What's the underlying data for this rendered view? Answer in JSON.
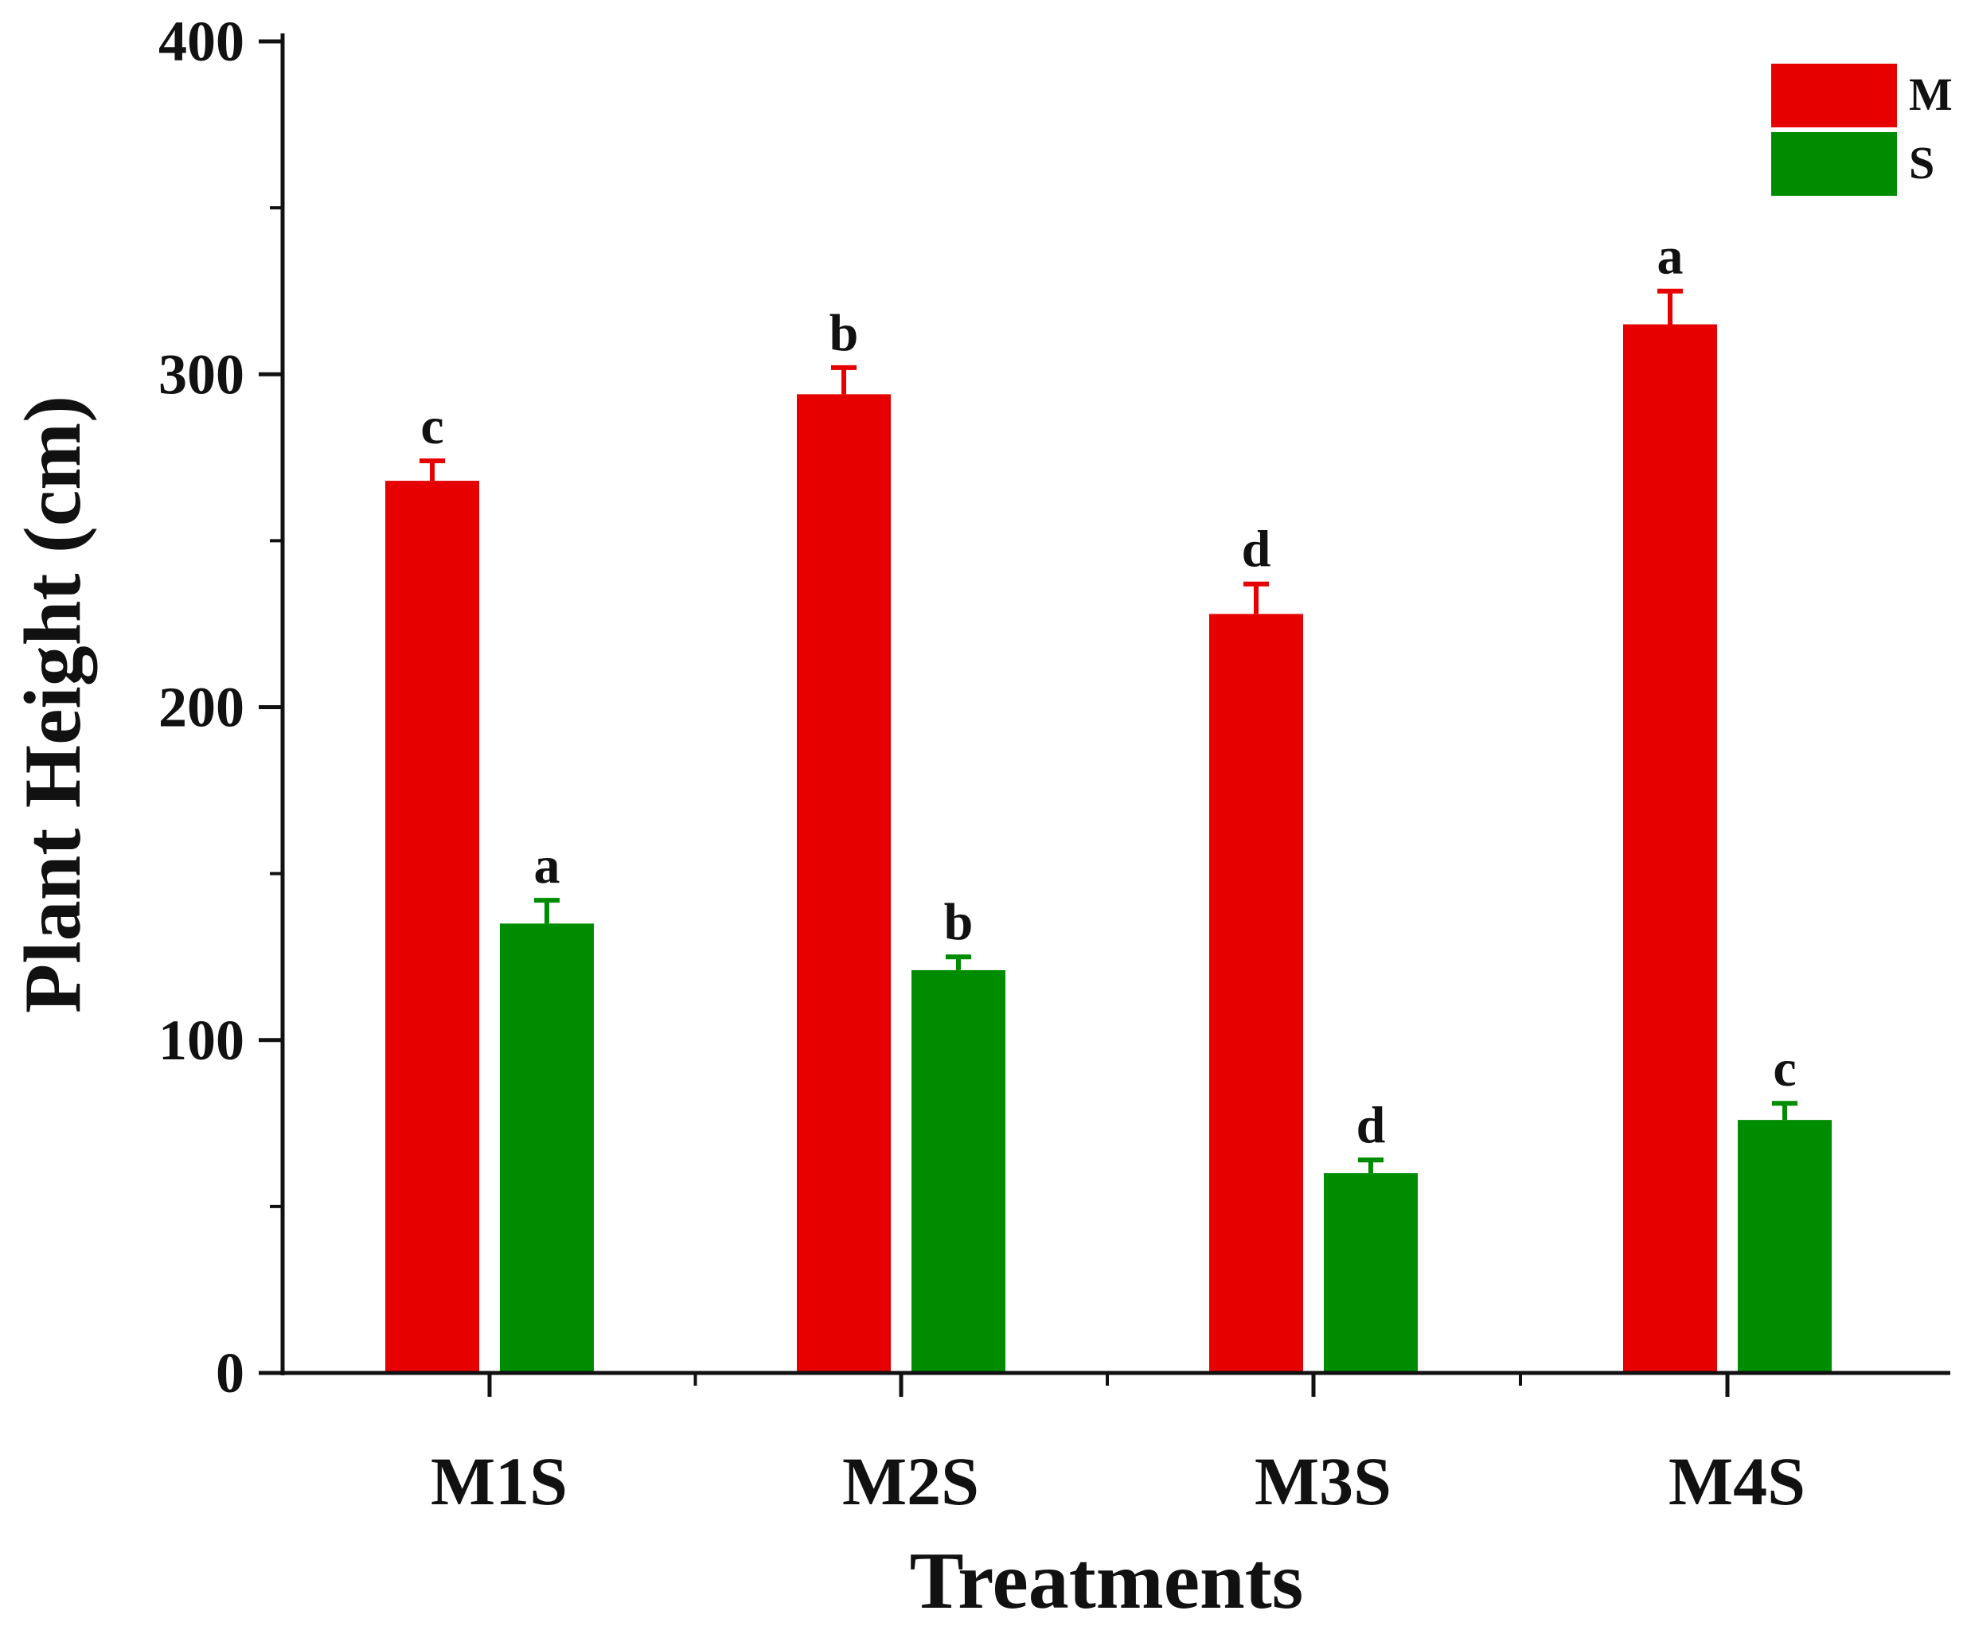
{
  "chart_data": {
    "type": "bar",
    "title": "",
    "xlabel": "Treatments",
    "ylabel": "Plant Height (cm)",
    "ylim": [
      0,
      400
    ],
    "yticks": [
      0,
      100,
      200,
      300,
      400
    ],
    "categories": [
      "M1S",
      "M2S",
      "M3S",
      "M4S"
    ],
    "legend_position": "top-right",
    "series": [
      {
        "name": "M",
        "color": "#e60000",
        "values": [
          268,
          294,
          228,
          315
        ],
        "errors": [
          6,
          8,
          9,
          10
        ],
        "labels": [
          "c",
          "b",
          "d",
          "a"
        ]
      },
      {
        "name": "S",
        "color": "#008c00",
        "values": [
          135,
          121,
          60,
          76
        ],
        "errors": [
          7,
          4,
          4,
          5
        ],
        "labels": [
          "a",
          "b",
          "d",
          "c"
        ]
      }
    ]
  }
}
